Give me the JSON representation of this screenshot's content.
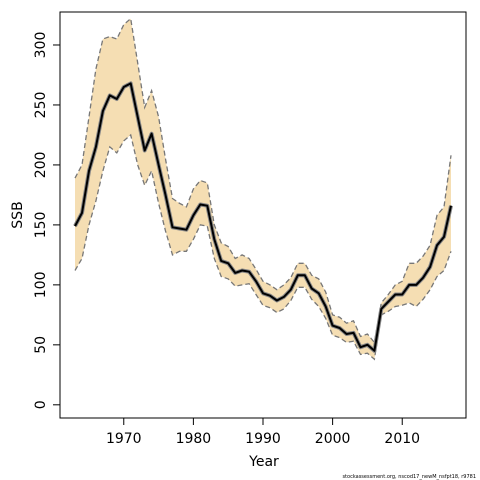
{
  "chart_data": {
    "type": "line",
    "xlabel": "Year",
    "ylabel": "SSB",
    "footnote": "stockassessment.org, nscod17_newM_nsfpt18, r9781",
    "x": [
      1963,
      1964,
      1965,
      1966,
      1967,
      1968,
      1969,
      1970,
      1971,
      1972,
      1973,
      1974,
      1975,
      1976,
      1977,
      1978,
      1979,
      1980,
      1981,
      1982,
      1983,
      1984,
      1985,
      1986,
      1987,
      1988,
      1989,
      1990,
      1991,
      1992,
      1993,
      1994,
      1995,
      1996,
      1997,
      1998,
      1999,
      2000,
      2001,
      2002,
      2003,
      2004,
      2005,
      2006,
      2007,
      2008,
      2009,
      2010,
      2011,
      2012,
      2013,
      2014,
      2015,
      2016,
      2017
    ],
    "values": [
      149,
      160,
      195,
      215,
      245,
      258,
      255,
      265,
      268,
      240,
      212,
      226,
      200,
      175,
      148,
      147,
      146,
      158,
      167,
      166,
      138,
      120,
      118,
      110,
      112,
      111,
      103,
      93,
      91,
      87,
      90,
      96,
      108,
      108,
      97,
      93,
      82,
      66,
      64,
      59,
      60,
      48,
      50,
      45,
      80,
      86,
      92,
      92,
      100,
      100,
      106,
      115,
      133,
      140,
      166
    ],
    "upper": [
      189,
      200,
      240,
      280,
      305,
      307,
      305,
      317,
      322,
      285,
      248,
      262,
      240,
      205,
      172,
      168,
      165,
      180,
      187,
      185,
      150,
      135,
      132,
      122,
      125,
      122,
      113,
      103,
      100,
      96,
      100,
      106,
      118,
      118,
      108,
      105,
      94,
      75,
      73,
      68,
      70,
      57,
      59,
      52,
      85,
      92,
      100,
      103,
      118,
      118,
      124,
      133,
      158,
      165,
      208
    ],
    "lower": [
      112,
      122,
      150,
      170,
      195,
      215,
      210,
      220,
      225,
      200,
      183,
      195,
      168,
      145,
      125,
      128,
      128,
      138,
      150,
      149,
      122,
      107,
      105,
      99,
      100,
      101,
      92,
      83,
      81,
      77,
      80,
      87,
      98,
      98,
      88,
      82,
      72,
      58,
      56,
      52,
      53,
      42,
      43,
      38,
      75,
      78,
      82,
      83,
      85,
      82,
      88,
      96,
      107,
      112,
      128
    ],
    "color": "#000000",
    "band_color": "#f5deb3",
    "bound_color": "#777777",
    "xlim": [
      1960.84,
      2019.16
    ],
    "ylim": [
      -11,
      327.5
    ],
    "xticks": [
      1970,
      1980,
      1990,
      2000,
      2010
    ],
    "yticks": [
      0,
      50,
      100,
      150,
      200,
      250,
      300
    ]
  }
}
